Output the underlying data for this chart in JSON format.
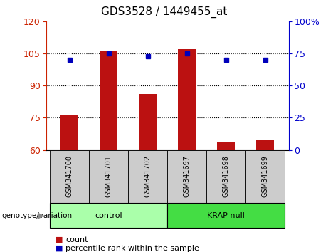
{
  "title": "GDS3528 / 1449455_at",
  "samples": [
    "GSM341700",
    "GSM341701",
    "GSM341702",
    "GSM341697",
    "GSM341698",
    "GSM341699"
  ],
  "groups": [
    "control",
    "control",
    "control",
    "KRAP null",
    "KRAP null",
    "KRAP null"
  ],
  "bar_values": [
    76,
    106,
    86,
    107,
    64,
    65
  ],
  "dot_values": [
    70,
    75,
    73,
    75,
    70,
    70
  ],
  "ylim_left": [
    60,
    120
  ],
  "ylim_right": [
    0,
    100
  ],
  "yticks_left": [
    60,
    75,
    90,
    105,
    120
  ],
  "yticks_right": [
    0,
    25,
    50,
    75,
    100
  ],
  "hlines": [
    75,
    90,
    105
  ],
  "bar_color": "#bb1111",
  "dot_color": "#0000bb",
  "bar_bottom": 60,
  "group_defs": [
    {
      "name": "control",
      "start": 0,
      "end": 2,
      "color": "#aaffaa"
    },
    {
      "name": "KRAP null",
      "start": 3,
      "end": 5,
      "color": "#44dd44"
    }
  ],
  "group_label": "genotype/variation",
  "legend_count": "count",
  "legend_percentile": "percentile rank within the sample",
  "ylabel_left_color": "#cc2200",
  "ylabel_right_color": "#0000cc",
  "sample_cell_color": "#cccccc",
  "title_fontsize": 11,
  "tick_fontsize": 9,
  "label_fontsize": 7,
  "genotype_fontsize": 8
}
